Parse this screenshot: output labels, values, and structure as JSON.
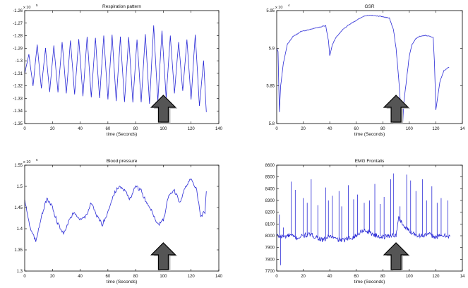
{
  "colors": {
    "signal": "#2a2ad6",
    "axis": "#000000",
    "arrow_fill": "#555555",
    "arrow_stroke": "#000000"
  },
  "chart_data": [
    {
      "type": "line",
      "title": "Respiration pattern",
      "xlabel": "time (Seconds)",
      "ylabel": "",
      "exponent": "x 10",
      "exponent_power": "5",
      "xlim": [
        0,
        140
      ],
      "ylim": [
        -1.35,
        -1.26
      ],
      "xticks": [
        "0",
        "20",
        "40",
        "60",
        "80",
        "100",
        "120",
        "140"
      ],
      "yticks": [
        "-1.35",
        "-1.34",
        "-1.33",
        "-1.32",
        "-1.31",
        "-1.3",
        "-1.29",
        "-1.28",
        "-1.27",
        "-1.26"
      ],
      "grid": false,
      "arrow_at_x": 100,
      "series": [
        {
          "x": [
            0,
            3,
            6,
            9,
            12,
            15,
            18,
            21,
            24,
            27,
            30,
            33,
            36,
            39,
            42,
            45,
            48,
            51,
            54,
            57,
            60,
            63,
            66,
            69,
            72,
            75,
            78,
            81,
            84,
            87,
            90,
            93,
            96,
            99,
            102,
            105,
            108,
            111,
            114,
            117,
            120,
            123,
            126,
            129,
            131
          ],
          "y": [
            -1.31,
            -1.295,
            -1.32,
            -1.287,
            -1.322,
            -1.29,
            -1.325,
            -1.288,
            -1.325,
            -1.285,
            -1.326,
            -1.284,
            -1.327,
            -1.283,
            -1.328,
            -1.281,
            -1.329,
            -1.282,
            -1.33,
            -1.28,
            -1.331,
            -1.279,
            -1.332,
            -1.281,
            -1.333,
            -1.281,
            -1.333,
            -1.283,
            -1.333,
            -1.279,
            -1.334,
            -1.272,
            -1.332,
            -1.276,
            -1.33,
            -1.28,
            -1.326,
            -1.285,
            -1.324,
            -1.283,
            -1.331,
            -1.279,
            -1.336,
            -1.3,
            -1.341
          ]
        }
      ]
    },
    {
      "type": "line",
      "title": "GSR",
      "xlabel": "time (Seconds)",
      "ylabel": "",
      "exponent": "x 10",
      "exponent_power": "4",
      "xlim": [
        0,
        140
      ],
      "ylim": [
        5.8,
        5.95
      ],
      "xticks": [
        "0",
        "20",
        "40",
        "60",
        "80",
        "100",
        "120",
        "14"
      ],
      "yticks": [
        "5.8",
        "5.85",
        "5.9",
        "5.95"
      ],
      "grid": false,
      "arrow_at_x": 90,
      "series": [
        {
          "x": [
            0,
            1,
            2,
            3,
            5,
            8,
            12,
            18,
            25,
            32,
            37,
            39,
            40,
            42,
            45,
            50,
            55,
            60,
            65,
            70,
            75,
            80,
            85,
            88,
            90,
            92,
            94,
            95,
            96,
            98,
            100,
            102,
            105,
            108,
            112,
            115,
            118,
            119,
            120,
            121,
            123,
            126,
            130
          ],
          "y": [
            5.9,
            5.896,
            5.815,
            5.85,
            5.88,
            5.905,
            5.915,
            5.922,
            5.925,
            5.928,
            5.93,
            5.91,
            5.89,
            5.905,
            5.915,
            5.925,
            5.932,
            5.937,
            5.942,
            5.944,
            5.943,
            5.942,
            5.94,
            5.925,
            5.9,
            5.86,
            5.81,
            5.8,
            5.83,
            5.86,
            5.89,
            5.905,
            5.913,
            5.916,
            5.917,
            5.916,
            5.914,
            5.88,
            5.818,
            5.83,
            5.855,
            5.87,
            5.875
          ]
        }
      ]
    },
    {
      "type": "line",
      "title": "Blood pressure",
      "xlabel": "time (Seconds)",
      "ylabel": "",
      "exponent": "x 10",
      "exponent_power": "6",
      "xlim": [
        0,
        140
      ],
      "ylim": [
        1.3,
        1.55
      ],
      "xticks": [
        "0",
        "20",
        "40",
        "60",
        "80",
        "100",
        "120",
        "140"
      ],
      "yticks": [
        "1.3",
        "1.35",
        "1.4",
        "1.45",
        "1.5",
        "1.55"
      ],
      "grid": false,
      "arrow_at_x": 100,
      "series": [
        {
          "x": [
            0,
            4,
            8,
            12,
            16,
            20,
            24,
            28,
            32,
            36,
            40,
            44,
            48,
            52,
            56,
            60,
            64,
            68,
            72,
            76,
            80,
            84,
            88,
            92,
            96,
            100,
            104,
            108,
            112,
            116,
            120,
            124,
            127,
            130,
            131
          ],
          "y": [
            1.47,
            1.4,
            1.37,
            1.43,
            1.47,
            1.45,
            1.41,
            1.39,
            1.42,
            1.44,
            1.42,
            1.43,
            1.46,
            1.43,
            1.41,
            1.44,
            1.48,
            1.5,
            1.49,
            1.47,
            1.5,
            1.49,
            1.46,
            1.44,
            1.41,
            1.42,
            1.48,
            1.49,
            1.46,
            1.5,
            1.52,
            1.49,
            1.43,
            1.44,
            1.49
          ]
        }
      ]
    },
    {
      "type": "line",
      "title": "EMG Frontalis",
      "xlabel": "time (Seconds)",
      "ylabel": "",
      "exponent": "",
      "exponent_power": "",
      "xlim": [
        0,
        140
      ],
      "ylim": [
        7700,
        8600
      ],
      "xticks": [
        "0",
        "20",
        "40",
        "60",
        "80",
        "100",
        "120",
        "14"
      ],
      "yticks": [
        "7700",
        "7800",
        "7900",
        "8000",
        "8100",
        "8200",
        "8300",
        "8400",
        "8500",
        "8600"
      ],
      "grid": false,
      "arrow_at_x": 90,
      "baseline": [
        [
          0,
          8000
        ],
        [
          5,
          7990
        ],
        [
          10,
          8005
        ],
        [
          15,
          7980
        ],
        [
          20,
          8000
        ],
        [
          25,
          8010
        ],
        [
          30,
          7990
        ],
        [
          35,
          7960
        ],
        [
          40,
          8000
        ],
        [
          45,
          7970
        ],
        [
          50,
          7960
        ],
        [
          55,
          7980
        ],
        [
          60,
          8000
        ],
        [
          65,
          8050
        ],
        [
          70,
          8030
        ],
        [
          75,
          8000
        ],
        [
          80,
          7990
        ],
        [
          85,
          8000
        ],
        [
          88,
          8010
        ],
        [
          90,
          8000
        ],
        [
          92,
          8150
        ],
        [
          94,
          8120
        ],
        [
          96,
          8080
        ],
        [
          100,
          8040
        ],
        [
          105,
          8010
        ],
        [
          110,
          8000
        ],
        [
          115,
          8010
        ],
        [
          120,
          7990
        ],
        [
          125,
          8000
        ],
        [
          131,
          8000
        ]
      ],
      "spikes": [
        [
          2,
          8180
        ],
        [
          3,
          7750
        ],
        [
          5,
          8070
        ],
        [
          11,
          8460
        ],
        [
          14,
          8390
        ],
        [
          20,
          8320
        ],
        [
          23,
          8280
        ],
        [
          26,
          8480
        ],
        [
          31,
          8260
        ],
        [
          37,
          8410
        ],
        [
          39,
          8300
        ],
        [
          42,
          8340
        ],
        [
          47,
          8380
        ],
        [
          49,
          8250
        ],
        [
          54,
          8430
        ],
        [
          58,
          8310
        ],
        [
          61,
          8350
        ],
        [
          66,
          8280
        ],
        [
          70,
          8300
        ],
        [
          74,
          8440
        ],
        [
          78,
          8270
        ],
        [
          81,
          8330
        ],
        [
          86,
          8480
        ],
        [
          88,
          8530
        ],
        [
          93,
          8250
        ],
        [
          98,
          8520
        ],
        [
          101,
          8470
        ],
        [
          105,
          8380
        ],
        [
          110,
          8480
        ],
        [
          113,
          8300
        ],
        [
          117,
          8420
        ],
        [
          121,
          8280
        ],
        [
          124,
          8320
        ],
        [
          129,
          8300
        ]
      ]
    }
  ]
}
